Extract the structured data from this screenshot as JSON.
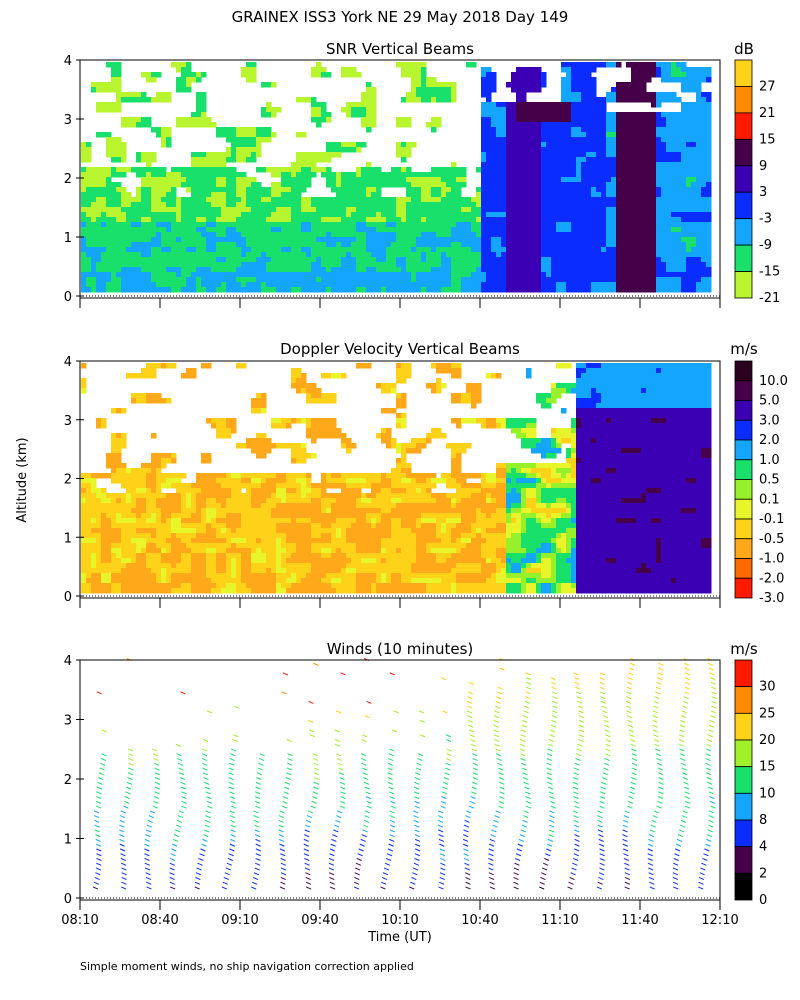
{
  "figure": {
    "title": "GRAINEX ISS3 York NE  29 May 2018 Day 149",
    "ylabel": "Altitude (km)",
    "xlabel": "Time (UT)",
    "footnote": "Simple moment winds, no ship navigation correction applied",
    "x_ticks": [
      "08:10",
      "08:40",
      "09:10",
      "09:40",
      "10:10",
      "10:40",
      "11:10",
      "11:40",
      "12:10"
    ],
    "y_ticks": [
      "0",
      "1",
      "2",
      "3",
      "4"
    ]
  },
  "chart_data": [
    {
      "type": "heatmap",
      "title": "SNR Vertical Beams",
      "unit": "dB",
      "xlim": [
        "08:10",
        "12:10"
      ],
      "ylim": [
        0,
        4
      ],
      "ylabel": "Altitude (km)",
      "colorbar": {
        "labels": [
          "27",
          "21",
          "15",
          "9",
          "3",
          "-3",
          "-9",
          "-15",
          "-21"
        ],
        "colors": [
          "#ffd21a",
          "#ff8c00",
          "#ff1a00",
          "#46004a",
          "#3c00b4",
          "#0a2cff",
          "#14a6ff",
          "#19e06a",
          "#b8f52e"
        ]
      }
    },
    {
      "type": "heatmap",
      "title": "Doppler Velocity Vertical Beams",
      "unit": "m/s",
      "xlim": [
        "08:10",
        "12:10"
      ],
      "ylim": [
        0,
        4
      ],
      "ylabel": "Altitude (km)",
      "colorbar": {
        "labels": [
          "10.0",
          "5.0",
          "3.0",
          "2.0",
          "1.0",
          "0.5",
          "0.1",
          "-0.1",
          "-0.5",
          "-1.0",
          "-2.0",
          "-3.0"
        ],
        "colors": [
          "#2a001e",
          "#46004a",
          "#3c00b4",
          "#0a2cff",
          "#14a6ff",
          "#19e06a",
          "#96f02a",
          "#e8f52a",
          "#ffd21a",
          "#ffa81a",
          "#ff6a00",
          "#ff1a00"
        ]
      }
    },
    {
      "type": "scatter",
      "title": "Winds (10 minutes)",
      "unit": "m/s",
      "xlim": [
        "08:10",
        "12:10"
      ],
      "ylim": [
        0,
        4
      ],
      "xlabel": "Time (UT)",
      "colorbar": {
        "labels": [
          "30",
          "25",
          "20",
          "15",
          "10",
          "8",
          "4",
          "2",
          "0"
        ],
        "colors": [
          "#ff1a00",
          "#ff8c00",
          "#ffd21a",
          "#a0f02a",
          "#19e06a",
          "#14a6ff",
          "#0a2cff",
          "#46004a",
          "#000000"
        ]
      }
    }
  ]
}
